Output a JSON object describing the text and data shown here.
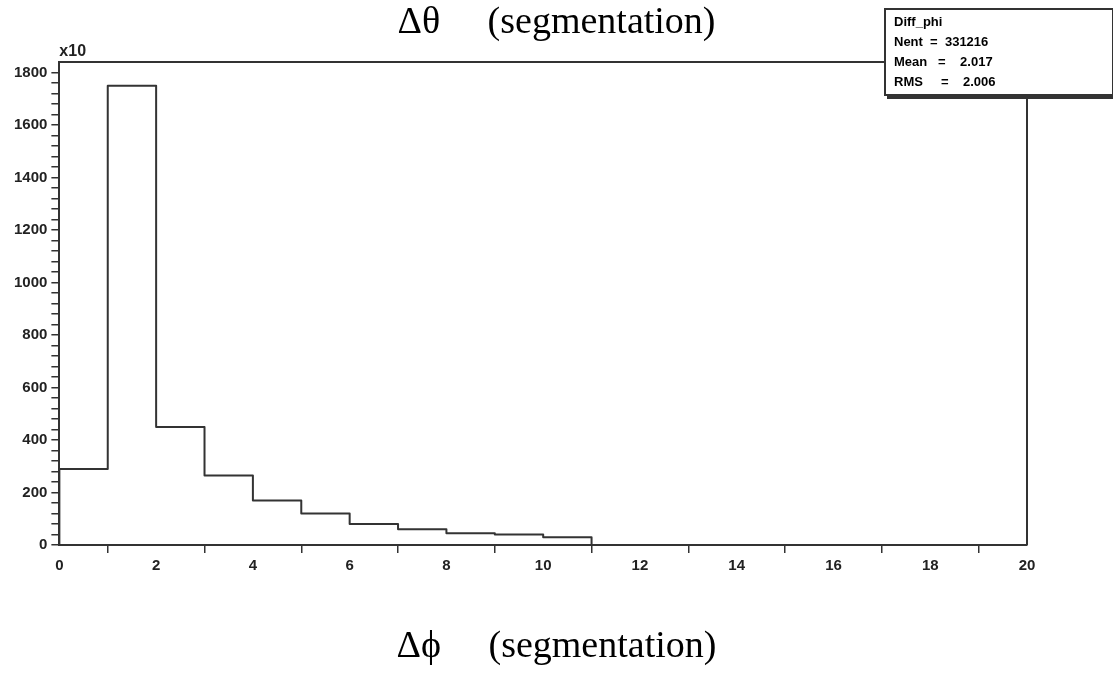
{
  "chart_data": {
    "type": "histogram",
    "title": "Δθ     (segmentation)",
    "xlabel": "Δϕ     (segmentation)",
    "bins": [
      0,
      1,
      2,
      3,
      4,
      5,
      6,
      7,
      8,
      9,
      10,
      11,
      12,
      13,
      14,
      15,
      16,
      17,
      18,
      19,
      20
    ],
    "values": [
      290,
      1750,
      450,
      265,
      170,
      120,
      80,
      60,
      45,
      40,
      30,
      0,
      0,
      0,
      0,
      0,
      0,
      0,
      0,
      0
    ],
    "color": "#333333",
    "xlim": [
      0,
      20
    ],
    "xticks": [
      0,
      2,
      4,
      6,
      8,
      10,
      12,
      14,
      16,
      18,
      20
    ],
    "ylim": [
      0,
      1840
    ],
    "yticks": [
      0,
      {
        "value": 40,
        "label": null
      },
      {
        "value": 80,
        "label": null
      },
      {
        "value": 120,
        "label": null
      },
      {
        "value": 160,
        "label": null
      },
      200,
      {
        "value": 240,
        "label": null
      },
      {
        "value": 280,
        "label": null
      },
      {
        "value": 320,
        "label": null
      },
      {
        "value": 360,
        "label": null
      },
      400,
      {
        "value": 440,
        "label": null
      },
      {
        "value": 480,
        "label": null
      },
      {
        "value": 520,
        "label": null
      },
      {
        "value": 560,
        "label": null
      },
      600,
      {
        "value": 640,
        "label": null
      },
      {
        "value": 680,
        "label": null
      },
      {
        "value": 720,
        "label": null
      },
      {
        "value": 760,
        "label": null
      },
      800,
      {
        "value": 840,
        "label": null
      },
      {
        "value": 880,
        "label": null
      },
      {
        "value": 920,
        "label": null
      },
      {
        "value": 960,
        "label": null
      },
      1000,
      {
        "value": 1040,
        "label": null
      },
      {
        "value": 1080,
        "label": null
      },
      {
        "value": 1120,
        "label": null
      },
      {
        "value": 1160,
        "label": null
      },
      1200,
      {
        "value": 1240,
        "label": null
      },
      {
        "value": 1280,
        "label": null
      },
      {
        "value": 1320,
        "label": null
      },
      {
        "value": 1360,
        "label": null
      },
      1400,
      {
        "value": 1440,
        "label": null
      },
      {
        "value": 1480,
        "label": null
      },
      {
        "value": 1520,
        "label": null
      },
      {
        "value": 1560,
        "label": null
      },
      1600,
      {
        "value": 1640,
        "label": null
      },
      {
        "value": 1680,
        "label": null
      },
      {
        "value": 1720,
        "label": null
      },
      {
        "value": 1760,
        "label": null
      },
      1800
    ],
    "grid": false,
    "legend": false,
    "annotations": [
      "x10",
      "Diff_phi",
      "Nent  =  331216",
      "Mean   =    2.017",
      "RMS     =    2.006"
    ]
  }
}
